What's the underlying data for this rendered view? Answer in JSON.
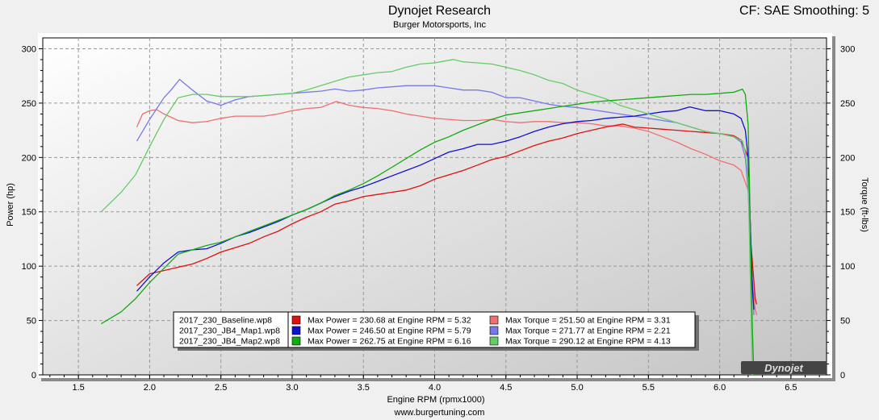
{
  "header": {
    "title": "Dynojet Research",
    "subtitle": "Burger Motorsports, Inc",
    "cf_text": "CF: SAE Smoothing: 5"
  },
  "footer": {
    "url": "www.burgertuning.com"
  },
  "logo": {
    "text": "Dynojet"
  },
  "chart_data": {
    "type": "line",
    "xlabel": "Engine RPM (rpmx1000)",
    "ylabel": "Power (hp)",
    "y2label": "Torque (ft-lbs)",
    "xlim": [
      1.25,
      6.75
    ],
    "ylim": [
      0,
      310
    ],
    "y2lim": [
      0,
      310
    ],
    "x_ticks": [
      "1.5",
      "2.0",
      "2.5",
      "3.0",
      "3.5",
      "4.0",
      "4.5",
      "5.0",
      "5.5",
      "6.0",
      "6.5"
    ],
    "y_ticks": [
      "0",
      "50",
      "100",
      "150",
      "200",
      "250",
      "300"
    ],
    "y2_ticks": [
      "0",
      "50",
      "100",
      "150",
      "200",
      "250",
      "300"
    ],
    "grid": true,
    "legend_position": "bottom-center",
    "series": [
      {
        "name": "2017_230_Baseline.wp8",
        "power_color": "#dd1111",
        "torque_color": "#ee7070",
        "max_power": "Max Power = 230.68 at Engine RPM = 5.32",
        "max_torque": "Max Torque = 251.50 at Engine RPM = 3.31",
        "power": [
          [
            1.91,
            82
          ],
          [
            2.0,
            93
          ],
          [
            2.1,
            96
          ],
          [
            2.2,
            99
          ],
          [
            2.3,
            102
          ],
          [
            2.4,
            107
          ],
          [
            2.5,
            113
          ],
          [
            2.6,
            117
          ],
          [
            2.7,
            121
          ],
          [
            2.8,
            127
          ],
          [
            2.9,
            132
          ],
          [
            3.0,
            139
          ],
          [
            3.1,
            145
          ],
          [
            3.2,
            150
          ],
          [
            3.3,
            157
          ],
          [
            3.4,
            160
          ],
          [
            3.5,
            164
          ],
          [
            3.6,
            166
          ],
          [
            3.7,
            168
          ],
          [
            3.8,
            170
          ],
          [
            3.9,
            174
          ],
          [
            4.0,
            180
          ],
          [
            4.1,
            184
          ],
          [
            4.2,
            188
          ],
          [
            4.3,
            193
          ],
          [
            4.4,
            198
          ],
          [
            4.5,
            201
          ],
          [
            4.6,
            206
          ],
          [
            4.7,
            211
          ],
          [
            4.8,
            215
          ],
          [
            4.9,
            218
          ],
          [
            5.0,
            222
          ],
          [
            5.1,
            225
          ],
          [
            5.2,
            228
          ],
          [
            5.32,
            230.7
          ],
          [
            5.4,
            228
          ],
          [
            5.5,
            227
          ],
          [
            5.6,
            226
          ],
          [
            5.7,
            225
          ],
          [
            5.8,
            224
          ],
          [
            5.9,
            223
          ],
          [
            6.0,
            222
          ],
          [
            6.1,
            220
          ],
          [
            6.15,
            216
          ],
          [
            6.2,
            200
          ],
          [
            6.22,
            120
          ],
          [
            6.25,
            70
          ],
          [
            6.26,
            65
          ]
        ],
        "torque": [
          [
            1.91,
            228
          ],
          [
            1.95,
            240
          ],
          [
            2.0,
            243
          ],
          [
            2.05,
            244
          ],
          [
            2.1,
            240
          ],
          [
            2.2,
            234
          ],
          [
            2.3,
            232
          ],
          [
            2.4,
            233
          ],
          [
            2.5,
            236
          ],
          [
            2.6,
            238
          ],
          [
            2.7,
            238
          ],
          [
            2.8,
            238
          ],
          [
            2.9,
            240
          ],
          [
            3.0,
            243
          ],
          [
            3.1,
            245
          ],
          [
            3.2,
            246
          ],
          [
            3.31,
            251.5
          ],
          [
            3.4,
            248
          ],
          [
            3.5,
            246
          ],
          [
            3.6,
            245
          ],
          [
            3.7,
            243
          ],
          [
            3.8,
            240
          ],
          [
            3.9,
            238
          ],
          [
            4.0,
            236
          ],
          [
            4.1,
            235
          ],
          [
            4.2,
            234
          ],
          [
            4.3,
            234
          ],
          [
            4.4,
            235
          ],
          [
            4.5,
            233
          ],
          [
            4.6,
            232
          ],
          [
            4.7,
            233
          ],
          [
            4.8,
            233
          ],
          [
            4.9,
            232
          ],
          [
            5.0,
            232
          ],
          [
            5.1,
            231
          ],
          [
            5.2,
            229
          ],
          [
            5.3,
            229
          ],
          [
            5.4,
            227
          ],
          [
            5.5,
            224
          ],
          [
            5.6,
            219
          ],
          [
            5.7,
            214
          ],
          [
            5.8,
            208
          ],
          [
            5.9,
            203
          ],
          [
            6.0,
            197
          ],
          [
            6.1,
            193
          ],
          [
            6.15,
            188
          ],
          [
            6.2,
            170
          ],
          [
            6.22,
            100
          ],
          [
            6.25,
            60
          ],
          [
            6.26,
            55
          ]
        ]
      },
      {
        "name": "2017_230_JB4_Map1.wp8",
        "power_color": "#1111cc",
        "torque_color": "#7878e8",
        "max_power": "Max Power = 246.50 at Engine RPM = 5.79",
        "max_torque": "Max Torque = 271.77 at Engine RPM = 2.21",
        "power": [
          [
            1.91,
            77
          ],
          [
            2.0,
            90
          ],
          [
            2.1,
            103
          ],
          [
            2.2,
            113
          ],
          [
            2.3,
            115
          ],
          [
            2.4,
            116
          ],
          [
            2.5,
            121
          ],
          [
            2.6,
            127
          ],
          [
            2.7,
            131
          ],
          [
            2.8,
            136
          ],
          [
            2.9,
            141
          ],
          [
            3.0,
            147
          ],
          [
            3.1,
            152
          ],
          [
            3.2,
            158
          ],
          [
            3.3,
            164
          ],
          [
            3.4,
            169
          ],
          [
            3.5,
            173
          ],
          [
            3.6,
            178
          ],
          [
            3.7,
            183
          ],
          [
            3.8,
            188
          ],
          [
            3.9,
            193
          ],
          [
            4.0,
            199
          ],
          [
            4.1,
            205
          ],
          [
            4.2,
            208
          ],
          [
            4.3,
            212
          ],
          [
            4.4,
            212
          ],
          [
            4.5,
            215
          ],
          [
            4.6,
            219
          ],
          [
            4.7,
            224
          ],
          [
            4.8,
            228
          ],
          [
            4.9,
            231
          ],
          [
            5.0,
            233
          ],
          [
            5.1,
            234
          ],
          [
            5.2,
            236
          ],
          [
            5.3,
            237
          ],
          [
            5.4,
            238
          ],
          [
            5.5,
            240
          ],
          [
            5.6,
            242
          ],
          [
            5.7,
            243
          ],
          [
            5.79,
            246.5
          ],
          [
            5.9,
            243
          ],
          [
            6.0,
            243
          ],
          [
            6.1,
            240
          ],
          [
            6.15,
            236
          ],
          [
            6.18,
            225
          ],
          [
            6.2,
            200
          ],
          [
            6.22,
            120
          ],
          [
            6.23,
            80
          ],
          [
            6.24,
            60
          ]
        ],
        "torque": [
          [
            1.91,
            215
          ],
          [
            2.0,
            235
          ],
          [
            2.1,
            255
          ],
          [
            2.15,
            262
          ],
          [
            2.21,
            271.8
          ],
          [
            2.3,
            262
          ],
          [
            2.4,
            252
          ],
          [
            2.5,
            248
          ],
          [
            2.6,
            253
          ],
          [
            2.7,
            256
          ],
          [
            2.8,
            257
          ],
          [
            2.9,
            258
          ],
          [
            3.0,
            259
          ],
          [
            3.1,
            260
          ],
          [
            3.2,
            261
          ],
          [
            3.3,
            263
          ],
          [
            3.4,
            261
          ],
          [
            3.5,
            262
          ],
          [
            3.6,
            264
          ],
          [
            3.7,
            265
          ],
          [
            3.8,
            266
          ],
          [
            3.9,
            266
          ],
          [
            4.0,
            266
          ],
          [
            4.1,
            264
          ],
          [
            4.2,
            262
          ],
          [
            4.3,
            262
          ],
          [
            4.4,
            260
          ],
          [
            4.5,
            255
          ],
          [
            4.6,
            255
          ],
          [
            4.7,
            252
          ],
          [
            4.8,
            249
          ],
          [
            4.9,
            247
          ],
          [
            5.0,
            246
          ],
          [
            5.1,
            244
          ],
          [
            5.2,
            242
          ],
          [
            5.3,
            240
          ],
          [
            5.4,
            238
          ],
          [
            5.5,
            236
          ],
          [
            5.6,
            234
          ],
          [
            5.7,
            232
          ],
          [
            5.8,
            228
          ],
          [
            5.9,
            224
          ],
          [
            6.0,
            222
          ],
          [
            6.1,
            219
          ],
          [
            6.15,
            214
          ],
          [
            6.18,
            200
          ],
          [
            6.2,
            170
          ],
          [
            6.22,
            110
          ],
          [
            6.24,
            55
          ]
        ]
      },
      {
        "name": "2017_230_JB4_Map2.wp8",
        "power_color": "#11aa11",
        "torque_color": "#66cc66",
        "max_power": "Max Power = 262.75 at Engine RPM = 6.16",
        "max_torque": "Max Torque = 290.12 at Engine RPM = 4.13",
        "power": [
          [
            1.66,
            47
          ],
          [
            1.8,
            58
          ],
          [
            1.9,
            70
          ],
          [
            2.0,
            85
          ],
          [
            2.1,
            98
          ],
          [
            2.2,
            111
          ],
          [
            2.3,
            115
          ],
          [
            2.4,
            119
          ],
          [
            2.5,
            122
          ],
          [
            2.6,
            127
          ],
          [
            2.7,
            132
          ],
          [
            2.8,
            137
          ],
          [
            2.9,
            142
          ],
          [
            3.0,
            147
          ],
          [
            3.1,
            152
          ],
          [
            3.2,
            158
          ],
          [
            3.3,
            165
          ],
          [
            3.4,
            170
          ],
          [
            3.5,
            176
          ],
          [
            3.6,
            183
          ],
          [
            3.7,
            191
          ],
          [
            3.8,
            199
          ],
          [
            3.9,
            207
          ],
          [
            4.0,
            214
          ],
          [
            4.1,
            219
          ],
          [
            4.2,
            225
          ],
          [
            4.3,
            230
          ],
          [
            4.4,
            235
          ],
          [
            4.5,
            239
          ],
          [
            4.6,
            241
          ],
          [
            4.7,
            243
          ],
          [
            4.8,
            245
          ],
          [
            4.9,
            247
          ],
          [
            5.0,
            249
          ],
          [
            5.1,
            251
          ],
          [
            5.2,
            252
          ],
          [
            5.3,
            253
          ],
          [
            5.4,
            254
          ],
          [
            5.5,
            255
          ],
          [
            5.6,
            256
          ],
          [
            5.7,
            257
          ],
          [
            5.8,
            258
          ],
          [
            5.9,
            258
          ],
          [
            6.0,
            259
          ],
          [
            6.1,
            260
          ],
          [
            6.16,
            262.8
          ],
          [
            6.18,
            258
          ],
          [
            6.2,
            230
          ],
          [
            6.21,
            170
          ],
          [
            6.22,
            100
          ],
          [
            6.23,
            40
          ],
          [
            6.24,
            0
          ]
        ],
        "torque": [
          [
            1.66,
            150
          ],
          [
            1.8,
            168
          ],
          [
            1.9,
            184
          ],
          [
            2.0,
            210
          ],
          [
            2.1,
            235
          ],
          [
            2.2,
            255
          ],
          [
            2.3,
            258
          ],
          [
            2.4,
            258
          ],
          [
            2.5,
            256
          ],
          [
            2.6,
            256
          ],
          [
            2.7,
            256
          ],
          [
            2.8,
            257
          ],
          [
            2.9,
            258
          ],
          [
            3.0,
            259
          ],
          [
            3.1,
            262
          ],
          [
            3.2,
            266
          ],
          [
            3.3,
            270
          ],
          [
            3.4,
            274
          ],
          [
            3.5,
            276
          ],
          [
            3.6,
            278
          ],
          [
            3.7,
            279
          ],
          [
            3.8,
            283
          ],
          [
            3.9,
            286
          ],
          [
            4.0,
            287
          ],
          [
            4.13,
            290.1
          ],
          [
            4.2,
            288
          ],
          [
            4.3,
            287
          ],
          [
            4.4,
            286
          ],
          [
            4.5,
            283
          ],
          [
            4.6,
            280
          ],
          [
            4.7,
            276
          ],
          [
            4.8,
            271
          ],
          [
            4.9,
            268
          ],
          [
            5.0,
            262
          ],
          [
            5.1,
            258
          ],
          [
            5.2,
            254
          ],
          [
            5.3,
            248
          ],
          [
            5.4,
            244
          ],
          [
            5.5,
            240
          ],
          [
            5.6,
            236
          ],
          [
            5.7,
            232
          ],
          [
            5.8,
            228
          ],
          [
            5.9,
            224
          ],
          [
            6.0,
            222
          ],
          [
            6.1,
            219
          ],
          [
            6.16,
            215
          ],
          [
            6.18,
            205
          ],
          [
            6.2,
            180
          ],
          [
            6.21,
            120
          ],
          [
            6.22,
            60
          ],
          [
            6.23,
            0
          ]
        ]
      }
    ]
  }
}
